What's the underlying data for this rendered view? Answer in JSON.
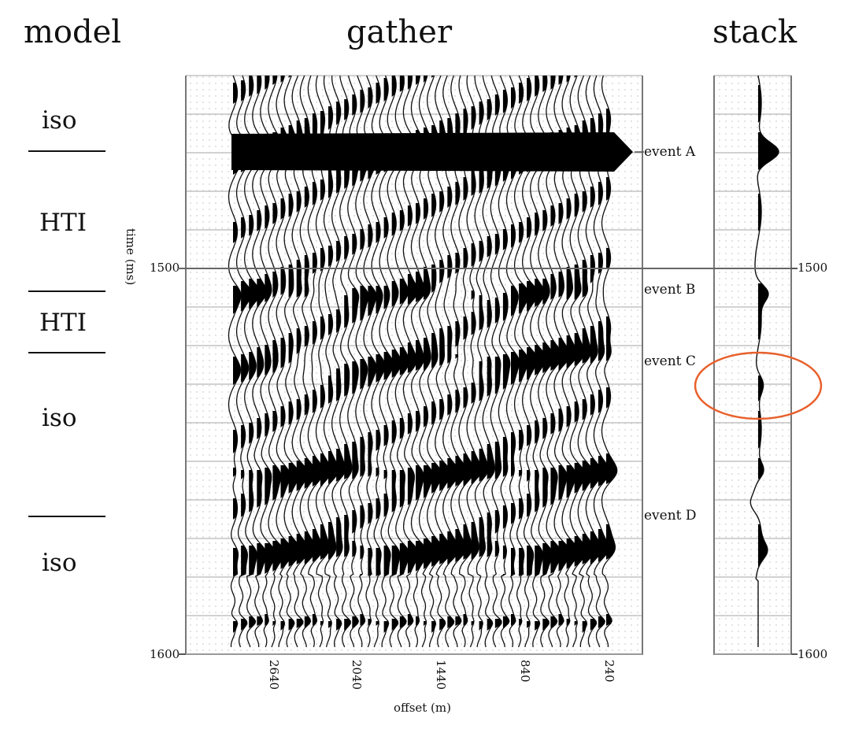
{
  "headers": {
    "model": "model",
    "gather": "gather",
    "stack": "stack"
  },
  "model_layers": [
    {
      "label": "iso"
    },
    {
      "label": "HTI"
    },
    {
      "label": "HTI"
    },
    {
      "label": "iso"
    },
    {
      "label": "iso"
    }
  ],
  "events": [
    {
      "label": "event A",
      "time_ms": 1470
    },
    {
      "label": "event B",
      "time_ms": 1506
    },
    {
      "label": "event C",
      "time_ms": 1524
    },
    {
      "label": "event D",
      "time_ms": 1566
    }
  ],
  "axes": {
    "time_label": "time (ms)",
    "offset_label": "offset (m)",
    "time_ticks": [
      "1500",
      "1600"
    ],
    "stack_time_ticks": [
      "1500",
      "1600"
    ],
    "offset_ticks": [
      "2640",
      "2040",
      "1440",
      "840",
      "240"
    ]
  },
  "highlight": {
    "color": "#e8602c",
    "target": "event C"
  },
  "colors": {
    "wiggle_fill": "#000000",
    "grid": "#9a9a9a"
  }
}
